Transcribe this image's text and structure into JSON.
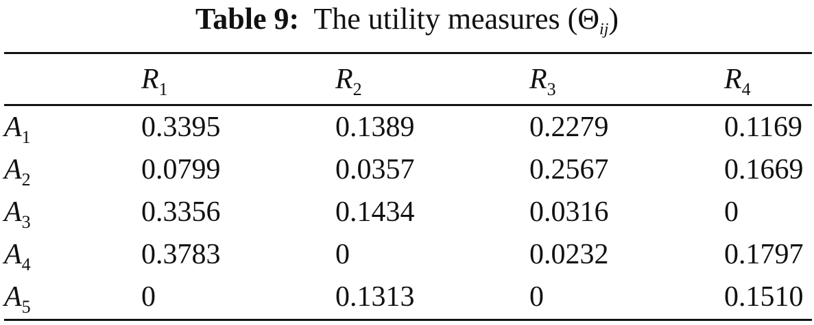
{
  "caption": {
    "label": "Table 9:",
    "text": "The utility measures",
    "symbol": "Θ",
    "subscript": "ij"
  },
  "columns": [
    {
      "symbol": "R",
      "sub": "1"
    },
    {
      "symbol": "R",
      "sub": "2"
    },
    {
      "symbol": "R",
      "sub": "3"
    },
    {
      "symbol": "R",
      "sub": "4"
    }
  ],
  "rows": [
    {
      "symbol": "A",
      "sub": "1",
      "values": [
        "0.3395",
        "0.1389",
        "0.2279",
        "0.1169"
      ]
    },
    {
      "symbol": "A",
      "sub": "2",
      "values": [
        "0.0799",
        "0.0357",
        "0.2567",
        "0.1669"
      ]
    },
    {
      "symbol": "A",
      "sub": "3",
      "values": [
        "0.3356",
        "0.1434",
        "0.0316",
        "0"
      ]
    },
    {
      "symbol": "A",
      "sub": "4",
      "values": [
        "0.3783",
        "0",
        "0.0232",
        "0.1797"
      ]
    },
    {
      "symbol": "A",
      "sub": "5",
      "values": [
        "0",
        "0.1313",
        "0",
        "0.1510"
      ]
    }
  ]
}
